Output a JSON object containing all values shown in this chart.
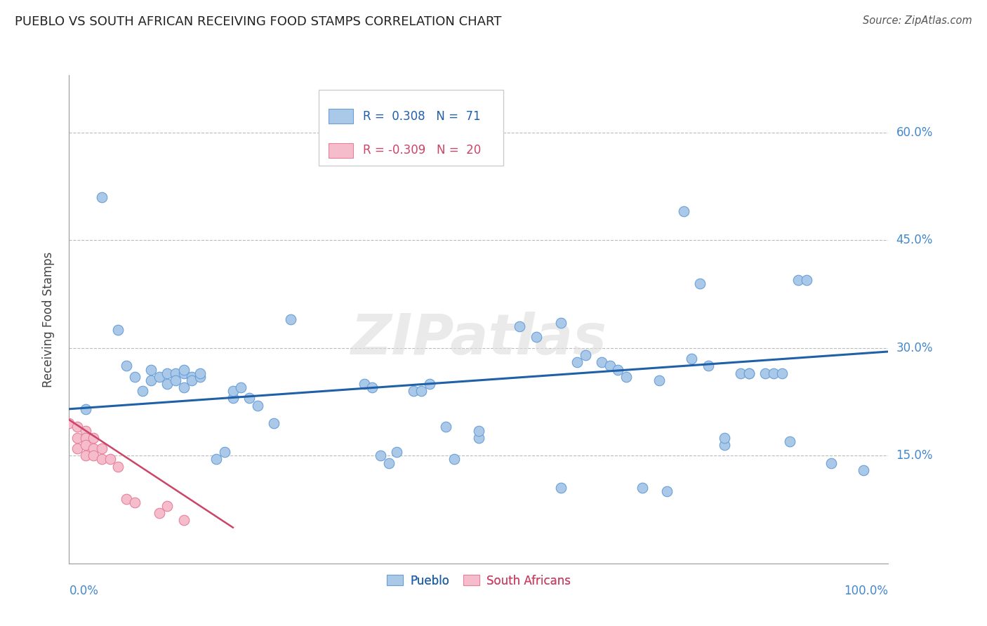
{
  "title": "PUEBLO VS SOUTH AFRICAN RECEIVING FOOD STAMPS CORRELATION CHART",
  "source": "Source: ZipAtlas.com",
  "ylabel_label": "Receiving Food Stamps",
  "xlim": [
    0.0,
    1.0
  ],
  "ylim": [
    0.0,
    0.68
  ],
  "blue_R": 0.308,
  "blue_N": 71,
  "pink_R": -0.309,
  "pink_N": 20,
  "blue_color": "#aac9e8",
  "pink_color": "#f5bccb",
  "blue_edge_color": "#6a9fd8",
  "pink_edge_color": "#e8809a",
  "blue_line_color": "#2060a8",
  "pink_line_color": "#cc4466",
  "blue_scatter": [
    [
      0.02,
      0.215
    ],
    [
      0.04,
      0.51
    ],
    [
      0.06,
      0.325
    ],
    [
      0.07,
      0.275
    ],
    [
      0.08,
      0.26
    ],
    [
      0.09,
      0.24
    ],
    [
      0.1,
      0.255
    ],
    [
      0.1,
      0.27
    ],
    [
      0.11,
      0.26
    ],
    [
      0.12,
      0.265
    ],
    [
      0.12,
      0.25
    ],
    [
      0.13,
      0.265
    ],
    [
      0.13,
      0.255
    ],
    [
      0.14,
      0.265
    ],
    [
      0.14,
      0.27
    ],
    [
      0.14,
      0.245
    ],
    [
      0.15,
      0.26
    ],
    [
      0.15,
      0.255
    ],
    [
      0.16,
      0.26
    ],
    [
      0.16,
      0.265
    ],
    [
      0.18,
      0.145
    ],
    [
      0.19,
      0.155
    ],
    [
      0.2,
      0.23
    ],
    [
      0.2,
      0.24
    ],
    [
      0.21,
      0.245
    ],
    [
      0.22,
      0.23
    ],
    [
      0.23,
      0.22
    ],
    [
      0.25,
      0.195
    ],
    [
      0.27,
      0.34
    ],
    [
      0.36,
      0.25
    ],
    [
      0.37,
      0.245
    ],
    [
      0.38,
      0.15
    ],
    [
      0.39,
      0.14
    ],
    [
      0.4,
      0.155
    ],
    [
      0.42,
      0.24
    ],
    [
      0.43,
      0.24
    ],
    [
      0.44,
      0.25
    ],
    [
      0.46,
      0.19
    ],
    [
      0.47,
      0.145
    ],
    [
      0.5,
      0.175
    ],
    [
      0.5,
      0.185
    ],
    [
      0.55,
      0.33
    ],
    [
      0.57,
      0.315
    ],
    [
      0.6,
      0.335
    ],
    [
      0.6,
      0.105
    ],
    [
      0.62,
      0.28
    ],
    [
      0.63,
      0.29
    ],
    [
      0.65,
      0.28
    ],
    [
      0.66,
      0.275
    ],
    [
      0.67,
      0.27
    ],
    [
      0.68,
      0.26
    ],
    [
      0.7,
      0.105
    ],
    [
      0.72,
      0.255
    ],
    [
      0.73,
      0.1
    ],
    [
      0.75,
      0.49
    ],
    [
      0.76,
      0.285
    ],
    [
      0.77,
      0.39
    ],
    [
      0.78,
      0.275
    ],
    [
      0.8,
      0.165
    ],
    [
      0.8,
      0.175
    ],
    [
      0.82,
      0.265
    ],
    [
      0.83,
      0.265
    ],
    [
      0.83,
      0.265
    ],
    [
      0.85,
      0.265
    ],
    [
      0.86,
      0.265
    ],
    [
      0.87,
      0.265
    ],
    [
      0.88,
      0.17
    ],
    [
      0.89,
      0.395
    ],
    [
      0.9,
      0.395
    ],
    [
      0.93,
      0.14
    ],
    [
      0.97,
      0.13
    ]
  ],
  "pink_scatter": [
    [
      0.0,
      0.195
    ],
    [
      0.01,
      0.19
    ],
    [
      0.01,
      0.175
    ],
    [
      0.01,
      0.16
    ],
    [
      0.02,
      0.185
    ],
    [
      0.02,
      0.175
    ],
    [
      0.02,
      0.165
    ],
    [
      0.02,
      0.15
    ],
    [
      0.03,
      0.175
    ],
    [
      0.03,
      0.16
    ],
    [
      0.03,
      0.15
    ],
    [
      0.04,
      0.16
    ],
    [
      0.04,
      0.145
    ],
    [
      0.05,
      0.145
    ],
    [
      0.06,
      0.135
    ],
    [
      0.07,
      0.09
    ],
    [
      0.08,
      0.085
    ],
    [
      0.11,
      0.07
    ],
    [
      0.12,
      0.08
    ],
    [
      0.14,
      0.06
    ]
  ],
  "blue_line_x": [
    0.0,
    1.0
  ],
  "blue_line_y": [
    0.215,
    0.295
  ],
  "pink_line_x": [
    0.0,
    0.2
  ],
  "pink_line_y": [
    0.2,
    0.05
  ],
  "watermark": "ZIPatlas",
  "legend_bottom": [
    "Pueblo",
    "South Africans"
  ],
  "ytick_vals": [
    0.15,
    0.3,
    0.45,
    0.6
  ],
  "ytick_labels": [
    "15.0%",
    "30.0%",
    "45.0%",
    "60.0%"
  ],
  "xtick_vals": [
    0.0,
    0.25,
    0.5,
    0.75,
    1.0
  ],
  "xtick_left_label": "0.0%",
  "xtick_right_label": "100.0%"
}
